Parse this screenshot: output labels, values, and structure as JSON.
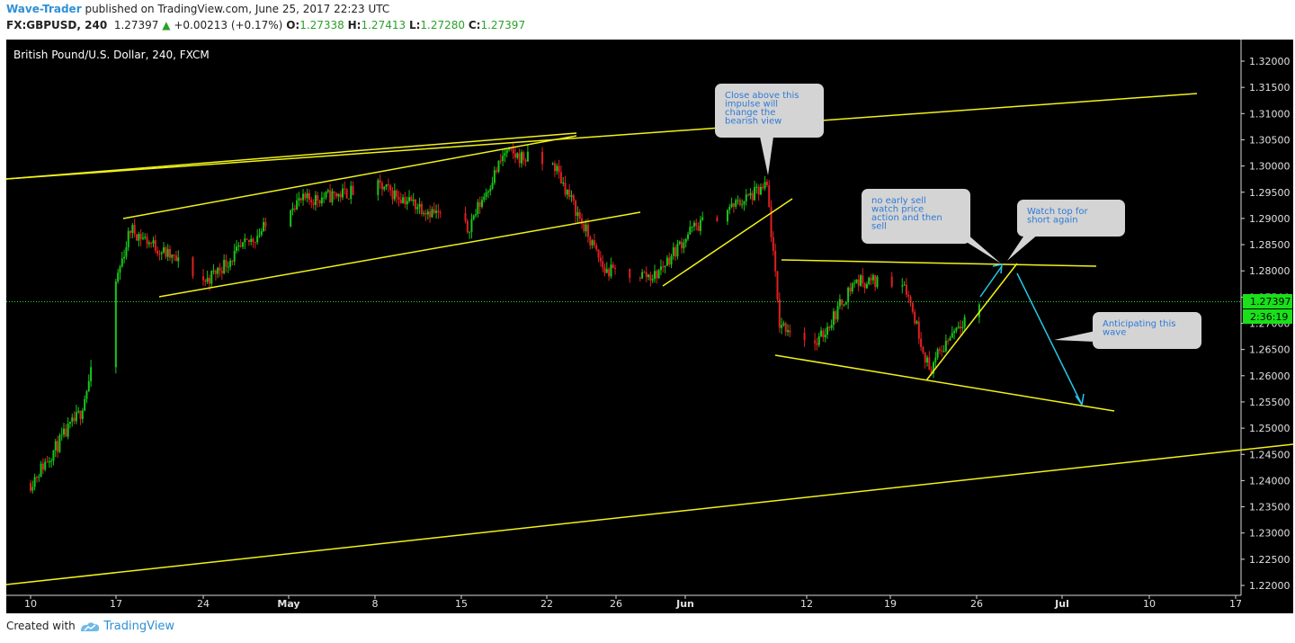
{
  "header": {
    "author": "Wave-Trader",
    "published": "published on TradingView.com, June 25, 2017 22:23 UTC",
    "symbol": "FX:GBPUSD, 240",
    "last": "1.27397",
    "change": "+0.00213 (+0.17%)",
    "open_label": "O:",
    "open": "1.27338",
    "high_label": "H:",
    "high": "1.27413",
    "low_label": "L:",
    "low": "1.27280",
    "close_label": "C:",
    "close": "1.27397"
  },
  "footer": {
    "created_with": "Created with",
    "brand": "TradingView"
  },
  "colors": {
    "background": "#000000",
    "up": "#18c618",
    "down": "#e02020",
    "trendline": "#f2f21a",
    "arrow": "#27c8e8",
    "price_badge": "#19e019",
    "callout_bg": "#d4d4d4",
    "callout_text": "#2f7ad6"
  },
  "chart_data": {
    "type": "candlestick",
    "title": "British Pound/U.S. Dollar, 240, FXCM",
    "ylim": [
      1.2175,
      1.3235
    ],
    "y_ticks": [
      "1.32000",
      "1.31500",
      "1.31000",
      "1.30500",
      "1.30000",
      "1.29500",
      "1.29000",
      "1.28500",
      "1.28000",
      "1.27500",
      "1.27000",
      "1.26500",
      "1.26000",
      "1.25500",
      "1.25000",
      "1.24500",
      "1.24000",
      "1.23500",
      "1.23000",
      "1.22500",
      "1.22000"
    ],
    "x_ticks": [
      "10",
      "17",
      "24",
      "May",
      "8",
      "15",
      "22",
      "26",
      "Jun",
      "12",
      "19",
      "26",
      "Jul",
      "10",
      "17"
    ],
    "last_price_label": "1.27397",
    "countdown_label": "2:36:19",
    "series": [
      {
        "date": "2017-04-10",
        "value": 1.2395
      },
      {
        "date": "2017-04-14",
        "value": 1.253
      },
      {
        "date": "2017-04-18",
        "value": 1.288
      },
      {
        "date": "2017-04-24",
        "value": 1.278
      },
      {
        "date": "2017-05-01",
        "value": 1.293
      },
      {
        "date": "2017-05-08",
        "value": 1.296
      },
      {
        "date": "2017-05-15",
        "value": 1.288
      },
      {
        "date": "2017-05-18",
        "value": 1.3025
      },
      {
        "date": "2017-05-22",
        "value": 1.3
      },
      {
        "date": "2017-05-26",
        "value": 1.28
      },
      {
        "date": "2017-05-30",
        "value": 1.279
      },
      {
        "date": "2017-06-02",
        "value": 1.288
      },
      {
        "date": "2017-06-08",
        "value": 1.296
      },
      {
        "date": "2017-06-09",
        "value": 1.27
      },
      {
        "date": "2017-06-12",
        "value": 1.266
      },
      {
        "date": "2017-06-15",
        "value": 1.278
      },
      {
        "date": "2017-06-19",
        "value": 1.278
      },
      {
        "date": "2017-06-21",
        "value": 1.261
      },
      {
        "date": "2017-06-23",
        "value": 1.269
      },
      {
        "date": "2017-06-25",
        "value": 1.274
      }
    ],
    "annotations": [
      "Close above this impulse will change the bearish view",
      "no early sell watch price action and then sell",
      "Watch top for short again",
      "Anticipating this wave"
    ]
  }
}
